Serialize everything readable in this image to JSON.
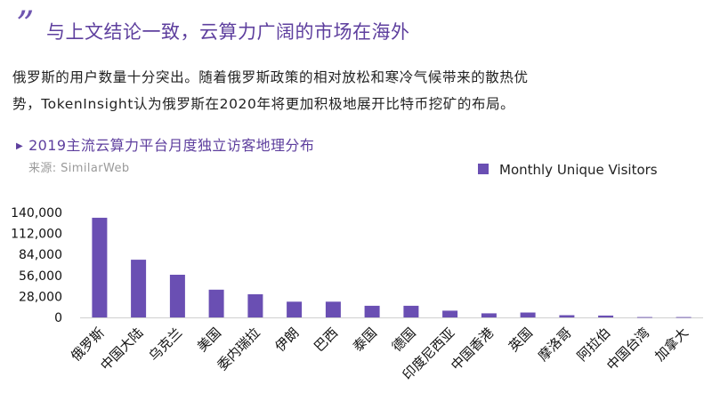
{
  "header": {
    "quote_mark": "”",
    "headline": "与上文结论一致，云算力广阔的市场在海外"
  },
  "paragraph": {
    "line1": "俄罗斯的用户数量十分突出。随着俄罗斯政策的相对放松和寒冷气候带来的散热优",
    "line2": "势，TokenInsight认为俄罗斯在2020年将更加积极地展开比特币挖矿的布局。"
  },
  "chart_header": {
    "marker_icon": "triangle-right-icon",
    "title": "2019主流云算力平台月度独立访客地理分布",
    "source": "来源: SimilarWeb"
  },
  "colors": {
    "bar": "#6a4fb3",
    "accent": "#5e3f9e"
  },
  "chart_data": {
    "type": "bar",
    "title": "2019主流云算力平台月度独立访客地理分布",
    "xlabel": "",
    "ylabel": "",
    "categories": [
      "俄罗斯",
      "中国大陆",
      "乌克兰",
      "美国",
      "委内瑞拉",
      "伊朗",
      "巴西",
      "泰国",
      "德国",
      "印度尼西亚",
      "中国香港",
      "英国",
      "摩洛哥",
      "阿拉伯",
      "中国台湾",
      "加拿大"
    ],
    "series": [
      {
        "name": "Monthly Unique Visitors",
        "values": [
          133000,
          77000,
          57000,
          37000,
          31000,
          21000,
          21000,
          15500,
          15500,
          9000,
          5500,
          6500,
          3000,
          2500,
          500,
          500
        ]
      }
    ],
    "ylim": [
      0,
      140000
    ],
    "yticks": [
      0,
      28000,
      56000,
      84000,
      112000,
      140000
    ],
    "ytick_labels": [
      "0",
      "28,000",
      "56,000",
      "84,000",
      "112,000",
      "140,000"
    ],
    "grid": false,
    "legend_position": "top-right"
  }
}
